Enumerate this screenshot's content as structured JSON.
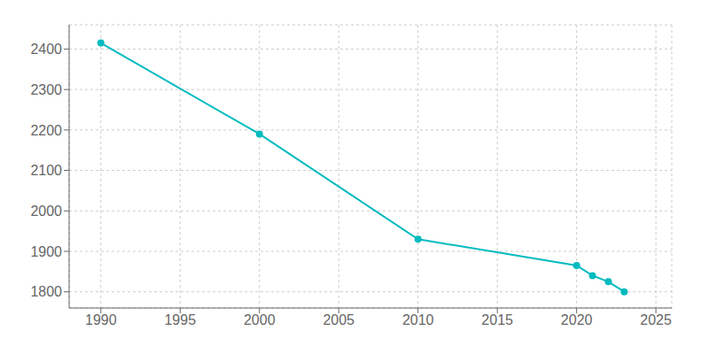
{
  "chart_data": {
    "type": "line",
    "x": [
      1990,
      2000,
      2010,
      2020,
      2021,
      2022,
      2023
    ],
    "values": [
      2415,
      2190,
      1930,
      1865,
      1840,
      1825,
      1800
    ],
    "color": "#00BBBF",
    "marker": "circle",
    "xlim": [
      1988,
      2026
    ],
    "ylim": [
      1760,
      2460
    ],
    "xticks": [
      1990,
      1995,
      2000,
      2005,
      2010,
      2015,
      2020,
      2025
    ],
    "yticks": [
      1800,
      1900,
      2000,
      2100,
      2200,
      2300,
      2400
    ],
    "grid": true
  }
}
